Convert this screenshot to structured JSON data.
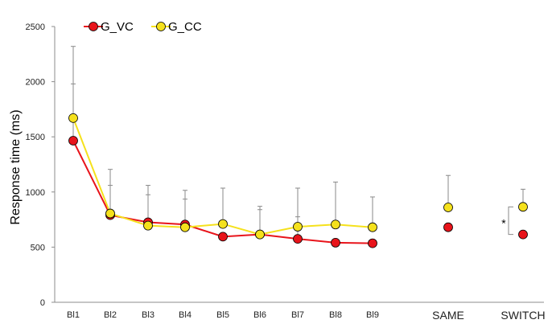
{
  "chart_data": {
    "type": "line",
    "title": "",
    "xlabel": "",
    "ylabel": "Response time  (ms)",
    "ylim": [
      0,
      2500
    ],
    "yticks": [
      0,
      500,
      1000,
      1500,
      2000,
      2500
    ],
    "grid": false,
    "legend_position": "top-left",
    "categories": [
      "Bl1",
      "Bl2",
      "Bl3",
      "Bl4",
      "Bl5",
      "Bl6",
      "Bl7",
      "Bl8",
      "Bl9",
      "SAME",
      "SWITCH"
    ],
    "connected_categories": 9,
    "series": [
      {
        "name": "G_VC",
        "color": "#e8141b",
        "marker_fill": "#e8141b",
        "values": [
          1465,
          790,
          725,
          705,
          595,
          615,
          575,
          540,
          535,
          680,
          615
        ],
        "error_upper": [
          1980,
          1060,
          975,
          935,
          null,
          840,
          775,
          null,
          null,
          null,
          null
        ]
      },
      {
        "name": "G_CC",
        "color": "#f5e11c",
        "marker_fill": "#f5e11c",
        "values": [
          1670,
          805,
          695,
          680,
          710,
          615,
          685,
          705,
          680,
          860,
          865
        ],
        "error_upper": [
          2320,
          1205,
          1060,
          1015,
          1035,
          870,
          1035,
          1090,
          955,
          1150,
          1025
        ]
      }
    ],
    "annotations": [
      {
        "text": "*",
        "between": [
          "SWITCH:G_VC",
          "SWITCH:G_CC"
        ]
      }
    ]
  }
}
